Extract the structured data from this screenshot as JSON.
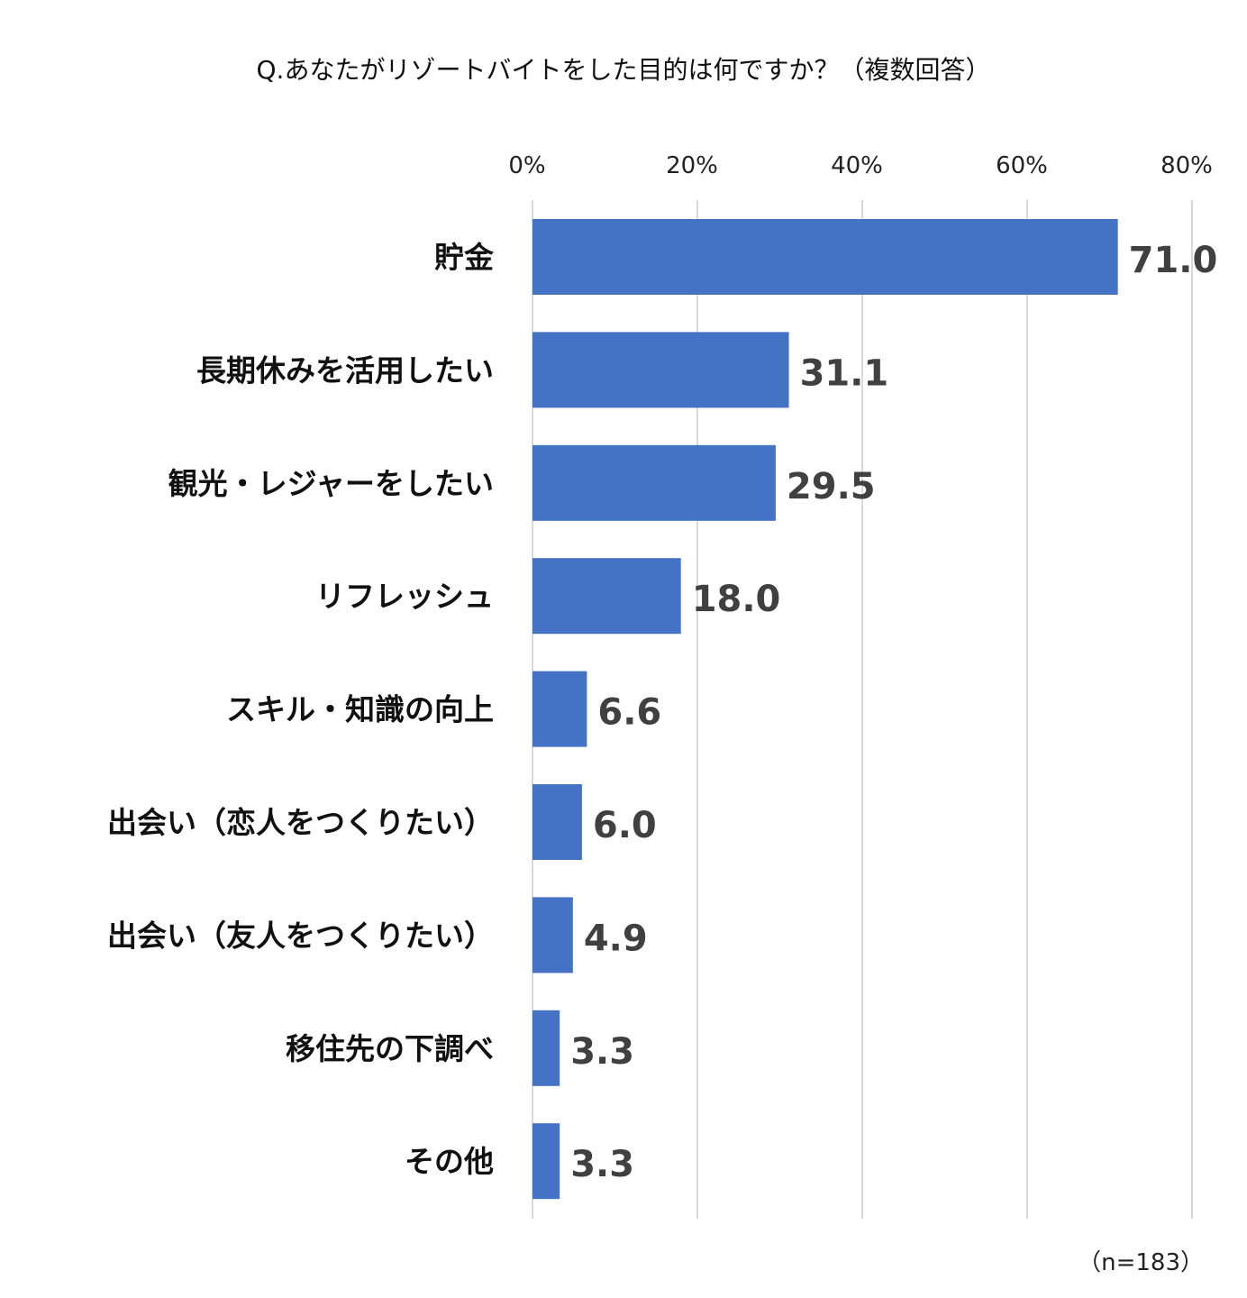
{
  "chart_data": {
    "type": "bar",
    "orientation": "horizontal",
    "title": "Q.あなたがリゾートバイトをした目的は何ですか？（複数回答）",
    "categories": [
      "貯金",
      "長期休みを活用したい",
      "観光・レジャーをしたい",
      "リフレッシュ",
      "スキル・知識の向上",
      "出会い（恋人をつくりたい）",
      "出会い（友人をつくりたい）",
      "移住先の下調べ",
      "その他"
    ],
    "values": [
      71.0,
      31.1,
      29.5,
      18.0,
      6.6,
      6.0,
      4.9,
      3.3,
      3.3
    ],
    "value_labels": [
      "71.0",
      "31.1",
      "29.5",
      "18.0",
      "6.6",
      "6.0",
      "4.9",
      "3.3",
      "3.3"
    ],
    "xlim": [
      0,
      80
    ],
    "xticks": [
      0,
      20,
      40,
      60,
      80
    ],
    "xtick_labels": [
      "0%",
      "20%",
      "40%",
      "60%",
      "80%"
    ],
    "axis_position": "top",
    "grid": true,
    "bar_color": "#4472C4",
    "grid_color": "#D9D9D9",
    "note": "（n=183）"
  }
}
